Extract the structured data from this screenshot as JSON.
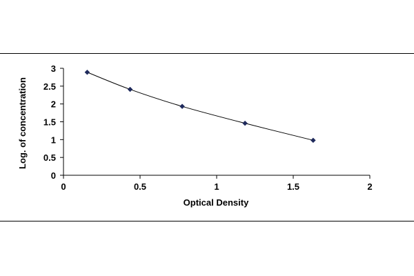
{
  "chart_data": {
    "type": "scatter",
    "xlabel": "Optical Density",
    "ylabel": "Log. of concentration",
    "xlim": [
      0,
      2
    ],
    "ylim": [
      0,
      3
    ],
    "x_ticks": [
      "0",
      "0.5",
      "1",
      "1.5",
      "2"
    ],
    "y_ticks": [
      "0",
      "0.5",
      "1",
      "1.5",
      "2",
      "2.5",
      "3"
    ],
    "grid": false,
    "legend": "none",
    "series": [
      {
        "marker": "diamond",
        "trendline": "smooth",
        "color": "#1f2a5c",
        "x": [
          0.155,
          0.435,
          0.775,
          1.185,
          1.63
        ],
        "y": [
          2.889,
          2.409,
          1.932,
          1.458,
          0.981
        ]
      }
    ]
  }
}
